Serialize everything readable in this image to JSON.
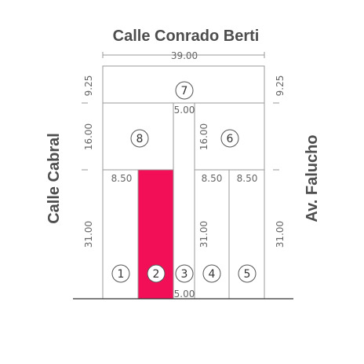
{
  "streets": {
    "top": "Calle Conrado Berti",
    "left": "Calle Cabral",
    "right": "Av. Falucho"
  },
  "dimensions": {
    "top_width": "39.00",
    "left_top": "9.25",
    "right_top": "9.25",
    "lot8_depth": "16.00",
    "lot6_depth": "16.00",
    "lot7_passage": "5.00",
    "left_bottom": "31.00",
    "right_bottom": "31.00",
    "lot4_depth": "31.00",
    "lot1_width": "8.50",
    "lot4_width": "8.50",
    "lot5_width": "8.50",
    "bottom_passage": "5.00"
  },
  "lots": {
    "l1": "1",
    "l2": "2",
    "l3": "3",
    "l4": "4",
    "l5": "5",
    "l6": "6",
    "l7": "7",
    "l8": "8"
  },
  "colors": {
    "highlight_lot": "#f30f58",
    "lines": "#9a9a9a",
    "text": "#4d4d4d"
  },
  "highlighted_lot": "2"
}
